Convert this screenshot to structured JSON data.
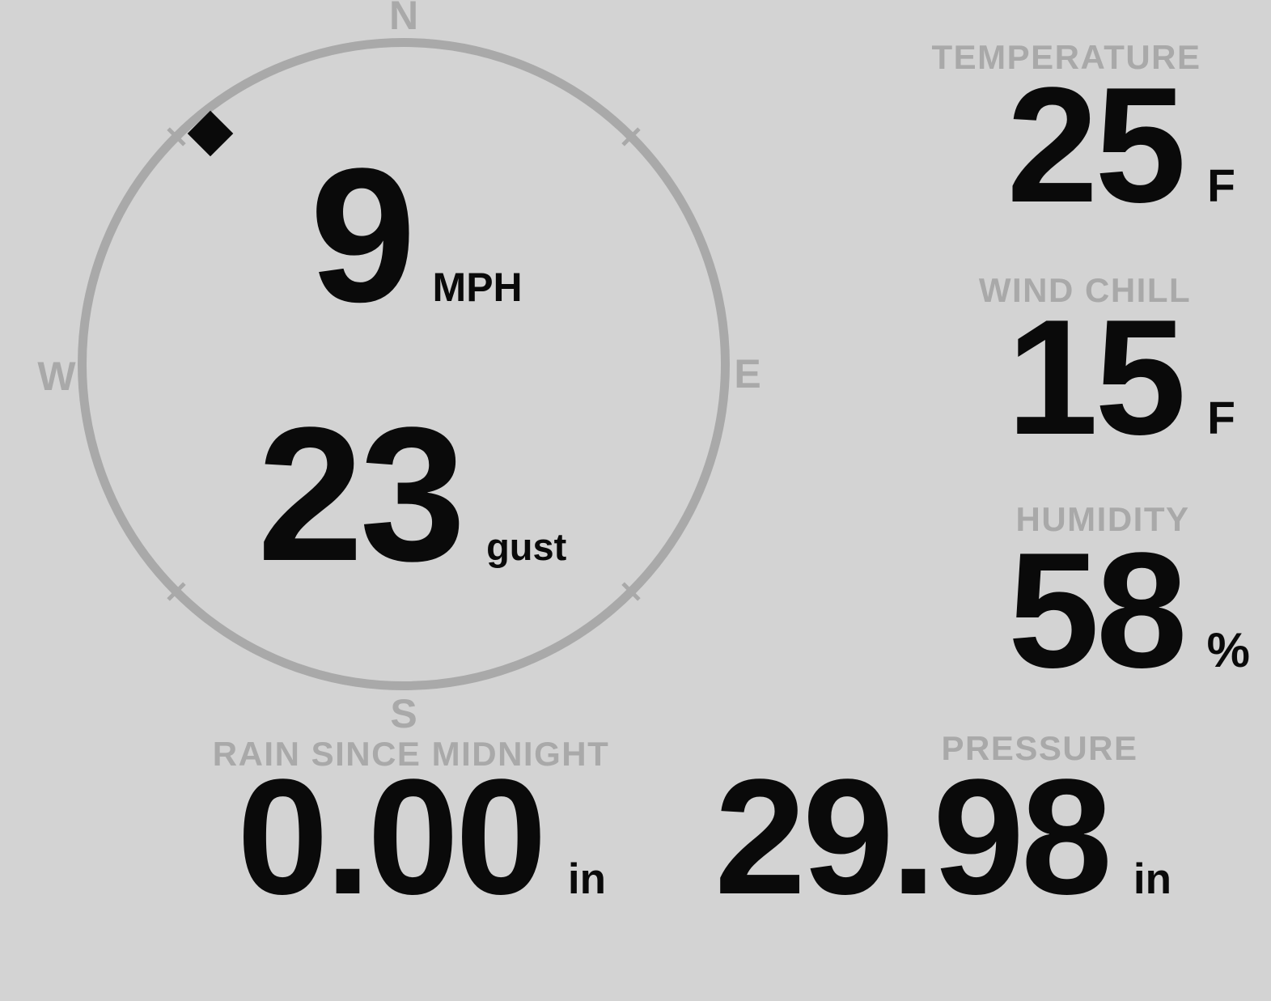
{
  "wind": {
    "speed": "9",
    "speed_unit": "MPH",
    "gust": "23",
    "gust_unit": "gust",
    "direction_degrees": 320,
    "compass": {
      "north": "N",
      "south": "S",
      "east": "E",
      "west": "W"
    }
  },
  "metrics": {
    "temperature": {
      "label": "TEMPERATURE",
      "value": "25",
      "unit": "F"
    },
    "wind_chill": {
      "label": "WIND CHILL",
      "value": "15",
      "unit": "F"
    },
    "humidity": {
      "label": "HUMIDITY",
      "value": "58",
      "unit": "%"
    },
    "rain": {
      "label": "RAIN SINCE MIDNIGHT",
      "value": "0.00",
      "unit": "in"
    },
    "pressure": {
      "label": "PRESSURE",
      "value": "29.98",
      "unit": "in"
    }
  },
  "colors": {
    "background": "#d3d3d3",
    "muted": "#a9a9a9",
    "ink": "#0a0a0a"
  }
}
